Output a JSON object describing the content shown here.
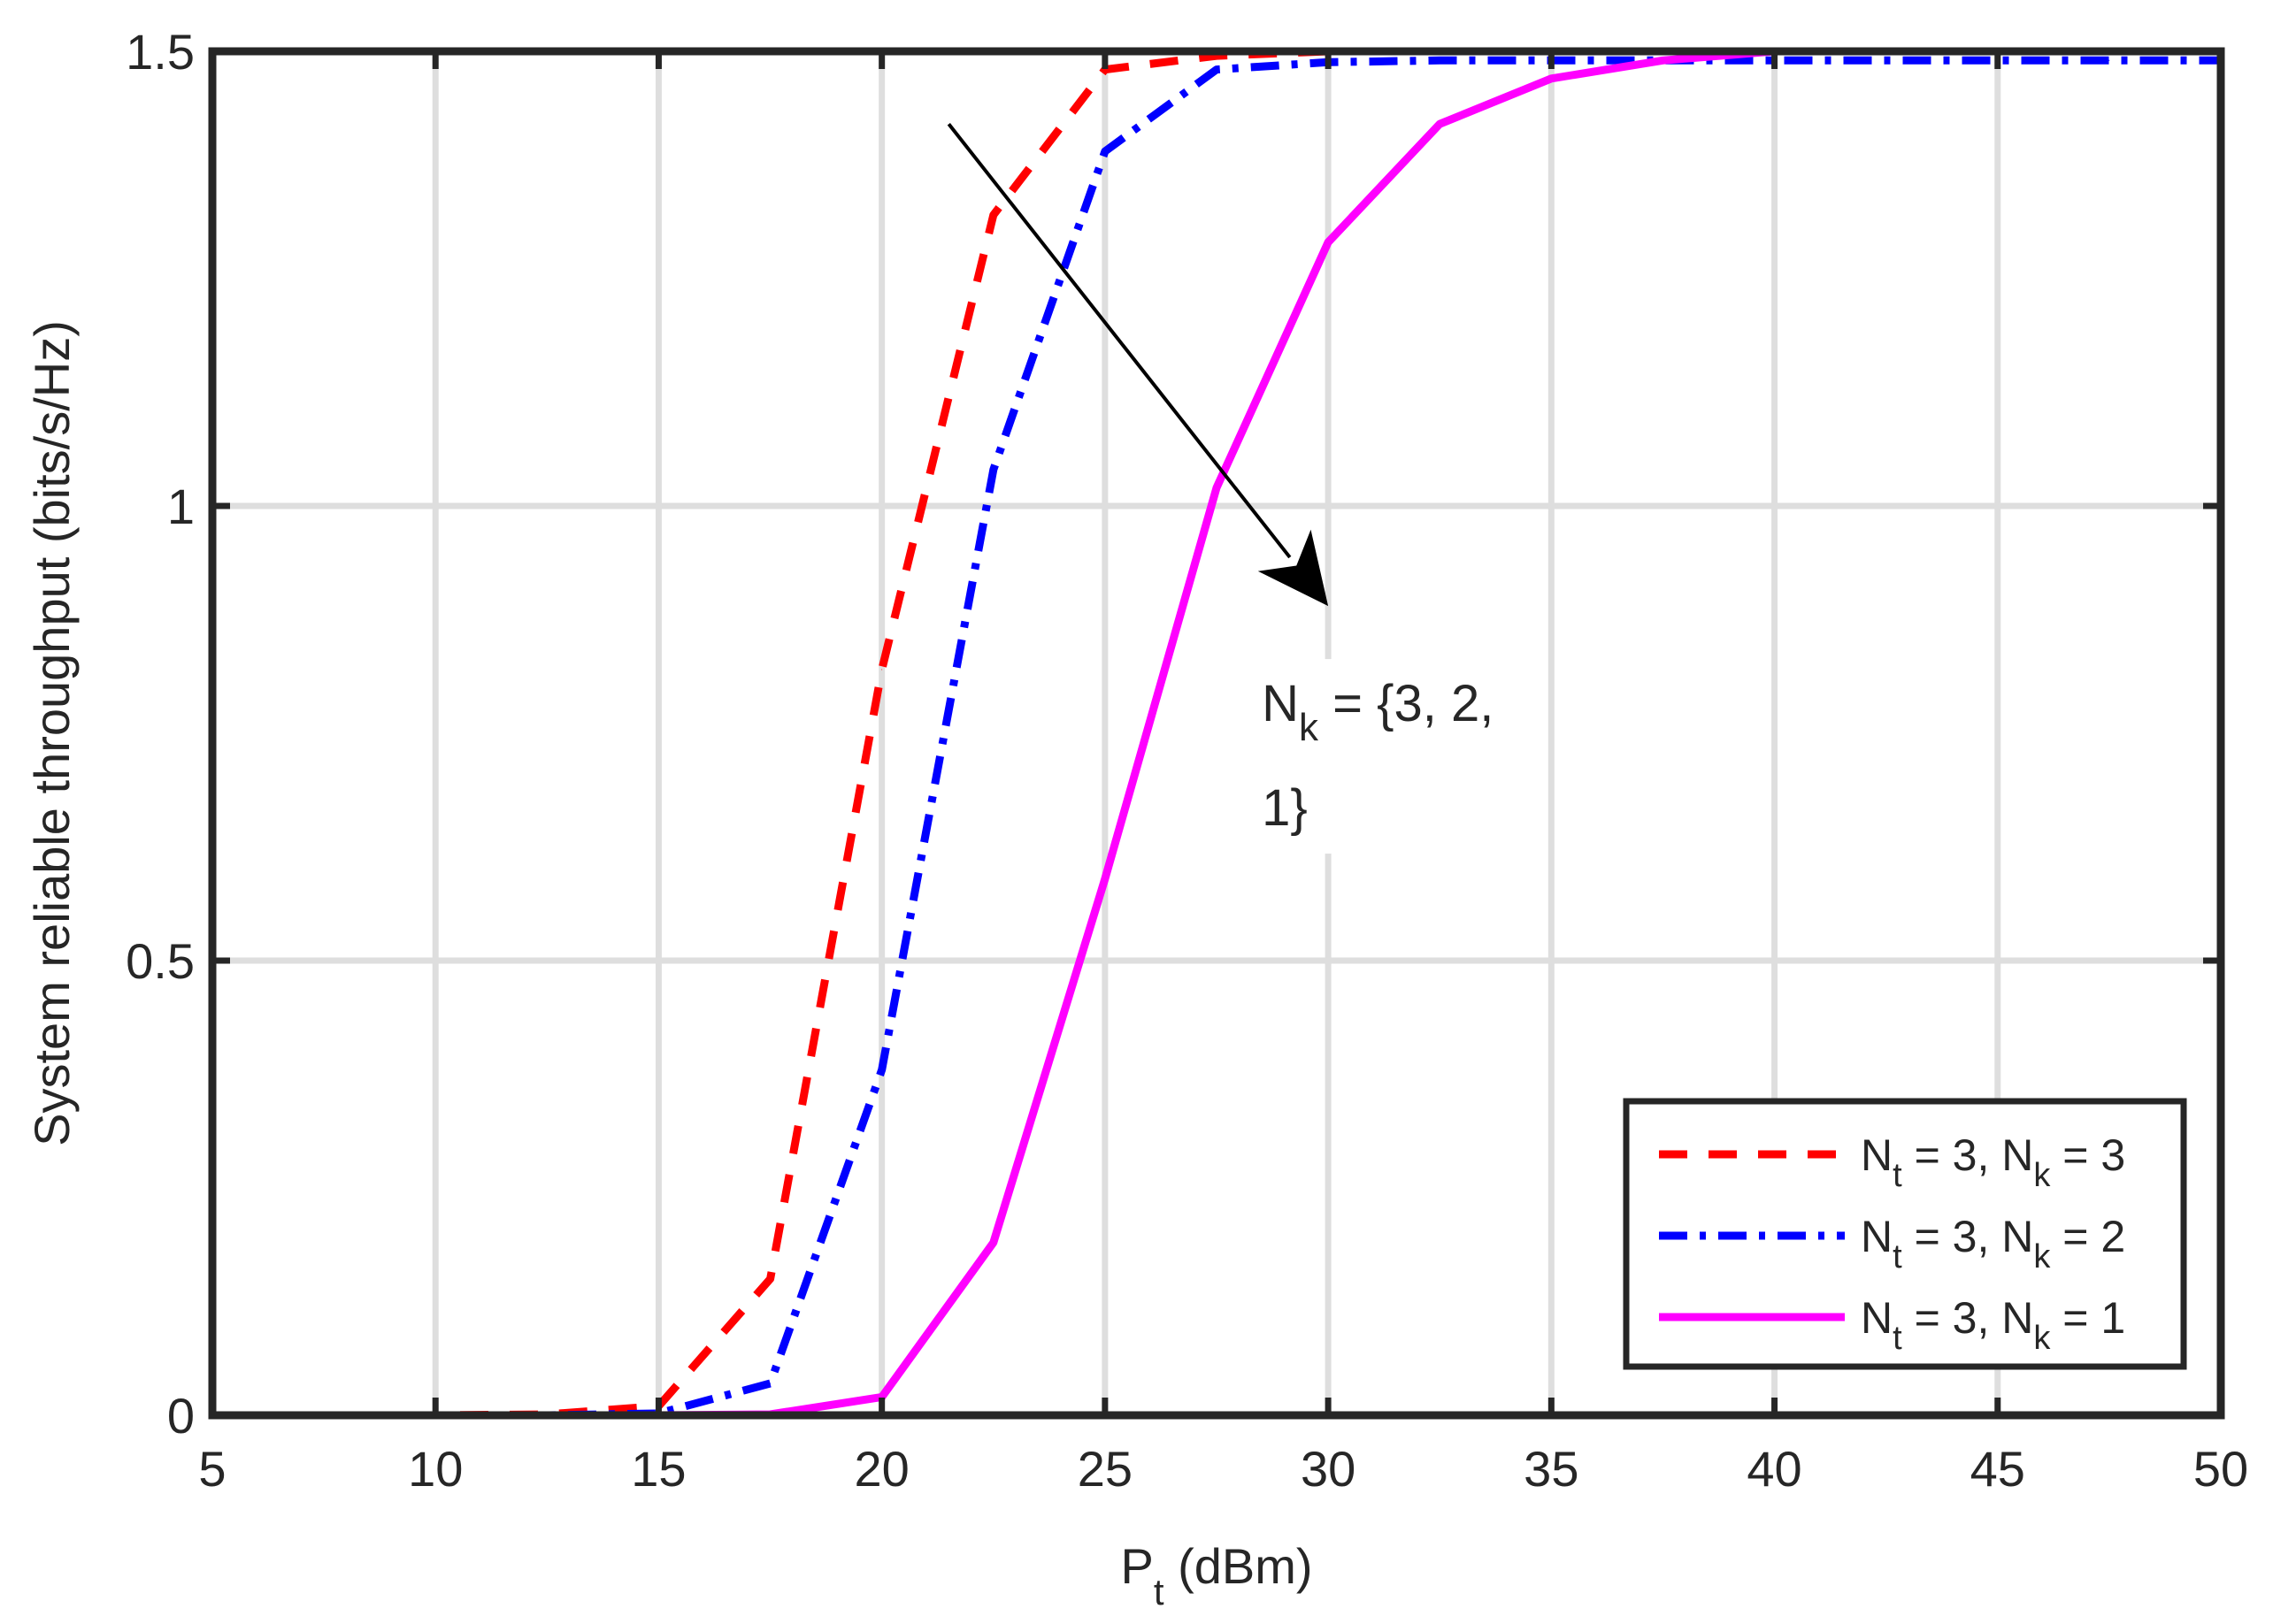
{
  "chart_data": {
    "type": "line",
    "xlabel": {
      "main": "P",
      "sub": "t",
      "rest": " (dBm)"
    },
    "ylabel": "System reliable throughput (bits/s/Hz)",
    "xlim": [
      5,
      50
    ],
    "ylim": [
      0,
      1.5
    ],
    "xticks": [
      5,
      10,
      15,
      20,
      25,
      30,
      35,
      40,
      45,
      50
    ],
    "xtick_labels": [
      "5",
      "10",
      "15",
      "20",
      "25",
      "30",
      "35",
      "40",
      "45",
      "50"
    ],
    "yticks": [
      0,
      0.5,
      1,
      1.5
    ],
    "ytick_labels": [
      "0",
      "0.5",
      "1",
      "1.5"
    ],
    "grid": true,
    "legend_position": "bottom-right",
    "x": [
      5,
      7.5,
      10,
      12.5,
      15,
      17.5,
      20,
      22.5,
      25,
      27.5,
      30,
      32.5,
      35,
      37.5,
      40,
      42.5,
      45,
      47.5,
      50
    ],
    "series": [
      {
        "legend": {
          "a": "N",
          "a_sub": "t",
          "mid": " = 3, N",
          "b_sub": "k",
          "end": " = 3"
        },
        "color": "#ff0000",
        "dash": "dashed",
        "values": [
          0,
          0,
          0,
          0.001,
          0.01,
          0.15,
          0.82,
          1.32,
          1.48,
          1.495,
          1.5,
          1.5,
          1.5,
          1.5,
          1.5,
          1.5,
          1.5,
          1.5,
          1.5
        ]
      },
      {
        "legend": {
          "a": "N",
          "a_sub": "t",
          "mid": " = 3, N",
          "b_sub": "k",
          "end": " = 2"
        },
        "color": "#0000ff",
        "dash": "dash-dot",
        "values": [
          0,
          0,
          0,
          0,
          0.002,
          0.035,
          0.38,
          1.04,
          1.39,
          1.48,
          1.488,
          1.49,
          1.49,
          1.49,
          1.49,
          1.49,
          1.49,
          1.49,
          1.49
        ]
      },
      {
        "legend": {
          "a": "N",
          "a_sub": "t",
          "mid": " = 3, N",
          "b_sub": "k",
          "end": " = 1"
        },
        "color": "#ff00ff",
        "dash": "solid",
        "values": [
          0,
          0,
          0,
          0,
          0,
          0.001,
          0.02,
          0.19,
          0.59,
          1.02,
          1.29,
          1.42,
          1.47,
          1.49,
          1.5,
          1.5,
          1.5,
          1.5,
          1.5
        ]
      }
    ],
    "annotation": {
      "line1_main": "N",
      "line1_sub": "k",
      "line1_rest": " = {3, 2,",
      "line2": "1}",
      "arrow_from": [
        21.5,
        1.42
      ],
      "arrow_to": [
        30,
        0.89
      ]
    }
  }
}
